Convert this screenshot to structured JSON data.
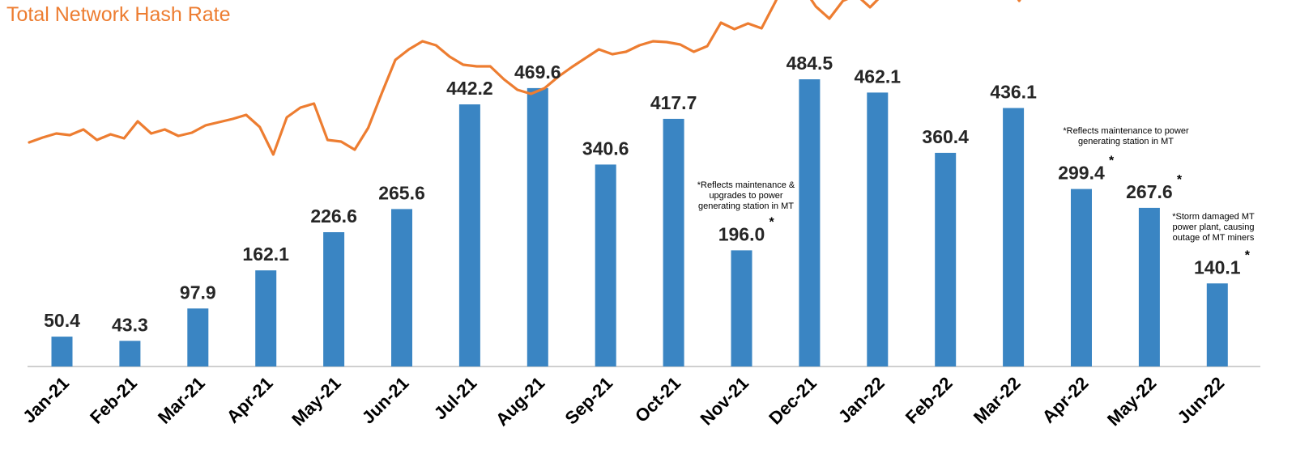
{
  "title": "Total Network Hash Rate",
  "colors": {
    "bar": "#3A85C3",
    "line": "#ED7D31",
    "title": "#ED7D31",
    "axis": "#BFBFBF"
  },
  "chart_data": {
    "type": "bar",
    "title": "Total Network Hash Rate",
    "xlabel": "",
    "ylabel": "",
    "ylim": [
      0,
      520
    ],
    "grid": false,
    "legend": "none",
    "categories": [
      "Jan-21",
      "Feb-21",
      "Mar-21",
      "Apr-21",
      "May-21",
      "Jun-21",
      "Jul-21",
      "Aug-21",
      "Sep-21",
      "Oct-21",
      "Nov-21",
      "Dec-21",
      "Jan-22",
      "Feb-22",
      "Mar-22",
      "Apr-22",
      "May-22",
      "Jun-22"
    ],
    "values": [
      50.4,
      43.3,
      97.9,
      162.1,
      226.6,
      265.6,
      442.2,
      469.6,
      340.6,
      417.7,
      196.0,
      484.5,
      462.1,
      360.4,
      436.1,
      299.4,
      267.6,
      140.1
    ],
    "value_labels": [
      "50.4",
      "43.3",
      "97.9",
      "162.1",
      "226.6",
      "265.6",
      "442.2",
      "469.6",
      "340.6",
      "417.7",
      "196.0",
      "484.5",
      "462.1",
      "360.4",
      "436.1",
      "299.4",
      "267.6",
      "140.1"
    ],
    "starred": [
      false,
      false,
      false,
      false,
      false,
      false,
      false,
      false,
      false,
      false,
      true,
      false,
      false,
      false,
      false,
      true,
      true,
      true
    ],
    "overlay_line": {
      "type": "line",
      "y_scale": "unlabeled",
      "values": [
        277,
        283,
        288,
        286,
        293,
        280,
        287,
        282,
        303,
        288,
        293,
        285,
        289,
        298,
        302,
        306,
        311,
        296,
        262,
        308,
        320,
        325,
        280,
        278,
        268,
        295,
        338,
        379,
        392,
        402,
        397,
        383,
        373,
        371,
        371,
        355,
        342,
        337,
        344,
        358,
        370,
        381,
        392,
        386,
        389,
        397,
        402,
        401,
        398,
        389,
        396,
        425,
        417,
        424,
        418,
        450,
        485,
        470,
        445,
        430,
        452,
        459,
        444,
        461,
        461,
        471,
        487,
        486,
        483,
        488,
        477,
        492,
        478,
        452,
        480,
        464,
        470,
        501,
        510,
        515,
        508,
        511,
        512,
        513,
        525,
        511,
        495,
        503,
        500,
        498,
        493
      ]
    },
    "annotations": [
      "*Reflects maintenance & upgrades to power generating station in MT",
      "*Reflects maintenance to power generating station in MT",
      "*Storm damaged MT power plant, causing outage of MT miners"
    ]
  }
}
